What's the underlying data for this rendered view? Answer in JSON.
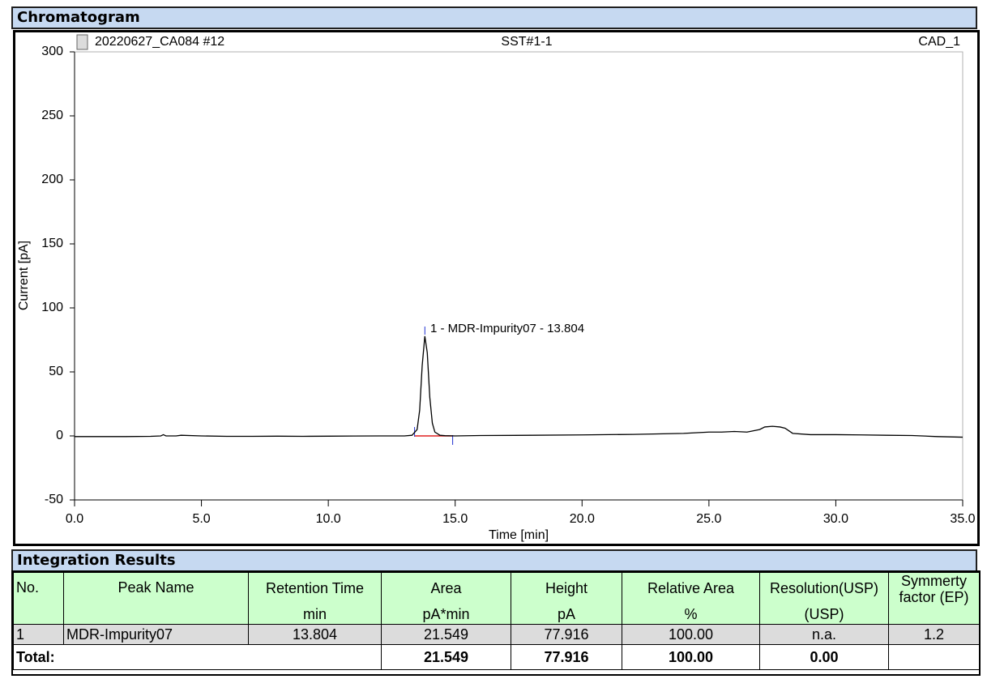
{
  "sections": {
    "chromatogram": "Chromatogram",
    "integration": "Integration Results"
  },
  "chart_data": {
    "type": "line",
    "title": "SST#1-1",
    "sample": "20220627_CA084 #12",
    "detector": "CAD_1",
    "x_label": "Time [min]",
    "y_label": "Current [pA]",
    "annotation": "1 - MDR-Impurity07 - 13.804",
    "color": "#000000",
    "x": [
      0,
      1,
      2,
      3,
      3.4,
      3.5,
      3.6,
      4,
      4.2,
      5,
      6,
      7,
      8,
      9,
      10,
      11,
      12,
      13,
      13.3,
      13.5,
      13.6,
      13.7,
      13.804,
      13.9,
      14.0,
      14.1,
      14.2,
      14.4,
      14.6,
      15,
      16,
      18,
      20,
      22,
      24,
      25,
      25.5,
      26,
      26.5,
      27,
      27.2,
      27.5,
      27.8,
      28,
      28.3,
      29,
      30,
      31,
      32,
      33,
      34,
      35
    ],
    "values": [
      -0.5,
      -0.5,
      -0.5,
      -0.3,
      0,
      1,
      0,
      0,
      0.5,
      0,
      -0.3,
      -0.3,
      -0.2,
      -0.3,
      -0.2,
      -0.1,
      0,
      0,
      0.5,
      5,
      20,
      55,
      77.916,
      65,
      30,
      10,
      3,
      0.5,
      0.2,
      0,
      0.3,
      0.5,
      0.8,
      1.2,
      2,
      3,
      3,
      3.5,
      3,
      5,
      7,
      7.5,
      7,
      6,
      2,
      1,
      1,
      0.8,
      0.5,
      0.3,
      -0.5,
      -1
    ],
    "xlim": [
      0,
      35
    ],
    "xticks": [
      {
        "value": 0,
        "label": "0.0"
      },
      {
        "value": 5,
        "label": "5.0"
      },
      {
        "value": 10,
        "label": "10.0"
      },
      {
        "value": 15,
        "label": "15.0"
      },
      {
        "value": 20,
        "label": "20.0"
      },
      {
        "value": 25,
        "label": "25.0"
      },
      {
        "value": 30,
        "label": "30.0"
      },
      {
        "value": 35,
        "label": "35.0"
      }
    ],
    "ylim": [
      -50,
      300
    ],
    "yticks": [
      -50,
      0,
      50,
      100,
      150,
      200,
      250,
      300
    ]
  },
  "table": {
    "header": [
      "No.",
      "Peak Name",
      "Retention Time",
      "Area",
      "Height",
      "Relative Area",
      "Resolution(USP)",
      "Symmerty factor (EP)"
    ],
    "units": [
      "min",
      "pA*min",
      "pA",
      "%",
      "(USP)"
    ],
    "rows": [
      [
        "1",
        "MDR-Impurity07",
        "13.804",
        "21.549",
        "77.916",
        "100.00",
        "n.a.",
        "1.2"
      ]
    ],
    "total": {
      "label": "Total:",
      "area": "21.549",
      "height": "77.916",
      "relative_area": "100.00",
      "resolution": "0.00"
    }
  }
}
